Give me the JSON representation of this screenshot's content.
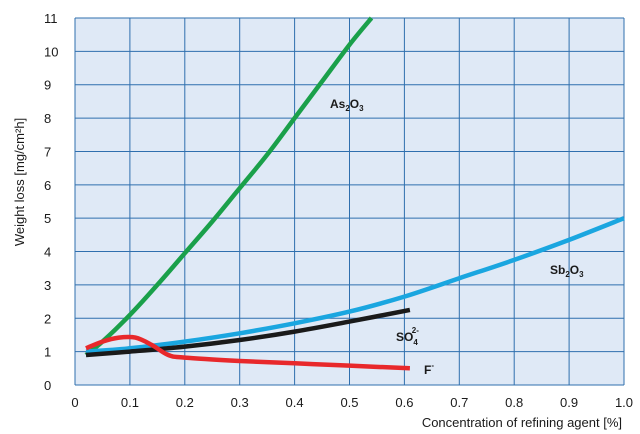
{
  "chart_data": {
    "type": "line",
    "xlabel": "Concentration of refining agent [%]",
    "ylabel": "Weight loss [mg/cm²h]",
    "xlim": [
      0,
      1.0
    ],
    "ylim": [
      0,
      11
    ],
    "xticks": [
      "0",
      "0.1",
      "0.2",
      "0.3",
      "0.4",
      "0.5",
      "0.6",
      "0.7",
      "0.8",
      "0.9",
      "1.0"
    ],
    "yticks": [
      "0",
      "1",
      "2",
      "3",
      "4",
      "5",
      "6",
      "7",
      "8",
      "9",
      "10",
      "11"
    ],
    "grid": true,
    "background": "#dfe9f6",
    "grid_color": "#2f6fae",
    "series": [
      {
        "name": "As2O3",
        "label_main": "As",
        "label_sub1": "2",
        "label_mid": "O",
        "label_sub2": "3",
        "color": "#1aa04a",
        "x": [
          0.02,
          0.05,
          0.1,
          0.15,
          0.2,
          0.25,
          0.3,
          0.35,
          0.4,
          0.45,
          0.5,
          0.54
        ],
        "y": [
          0.9,
          1.3,
          2.1,
          3.0,
          3.95,
          4.9,
          5.9,
          6.9,
          8.0,
          9.1,
          10.2,
          11.0
        ]
      },
      {
        "name": "Sb2O3",
        "label_main": "Sb",
        "label_sub1": "2",
        "label_mid": "O",
        "label_sub2": "3",
        "color": "#1aa6e0",
        "x": [
          0.02,
          0.1,
          0.2,
          0.3,
          0.4,
          0.5,
          0.6,
          0.7,
          0.8,
          0.9,
          1.0
        ],
        "y": [
          1.0,
          1.1,
          1.3,
          1.55,
          1.85,
          2.2,
          2.65,
          3.2,
          3.75,
          4.35,
          5.0
        ]
      },
      {
        "name": "SO4 2-",
        "label_main": "SO",
        "label_sub1": "4",
        "label_sup": "2-",
        "color": "#1a1a1a",
        "x": [
          0.02,
          0.1,
          0.2,
          0.3,
          0.4,
          0.5,
          0.61
        ],
        "y": [
          0.9,
          1.0,
          1.15,
          1.35,
          1.6,
          1.9,
          2.25
        ]
      },
      {
        "name": "F-",
        "label_main": "F",
        "label_sup": "-",
        "color": "#e8282b",
        "x": [
          0.02,
          0.05,
          0.08,
          0.11,
          0.14,
          0.17,
          0.2,
          0.3,
          0.4,
          0.5,
          0.61
        ],
        "y": [
          1.1,
          1.3,
          1.42,
          1.42,
          1.2,
          0.9,
          0.82,
          0.72,
          0.65,
          0.58,
          0.5
        ]
      }
    ]
  }
}
